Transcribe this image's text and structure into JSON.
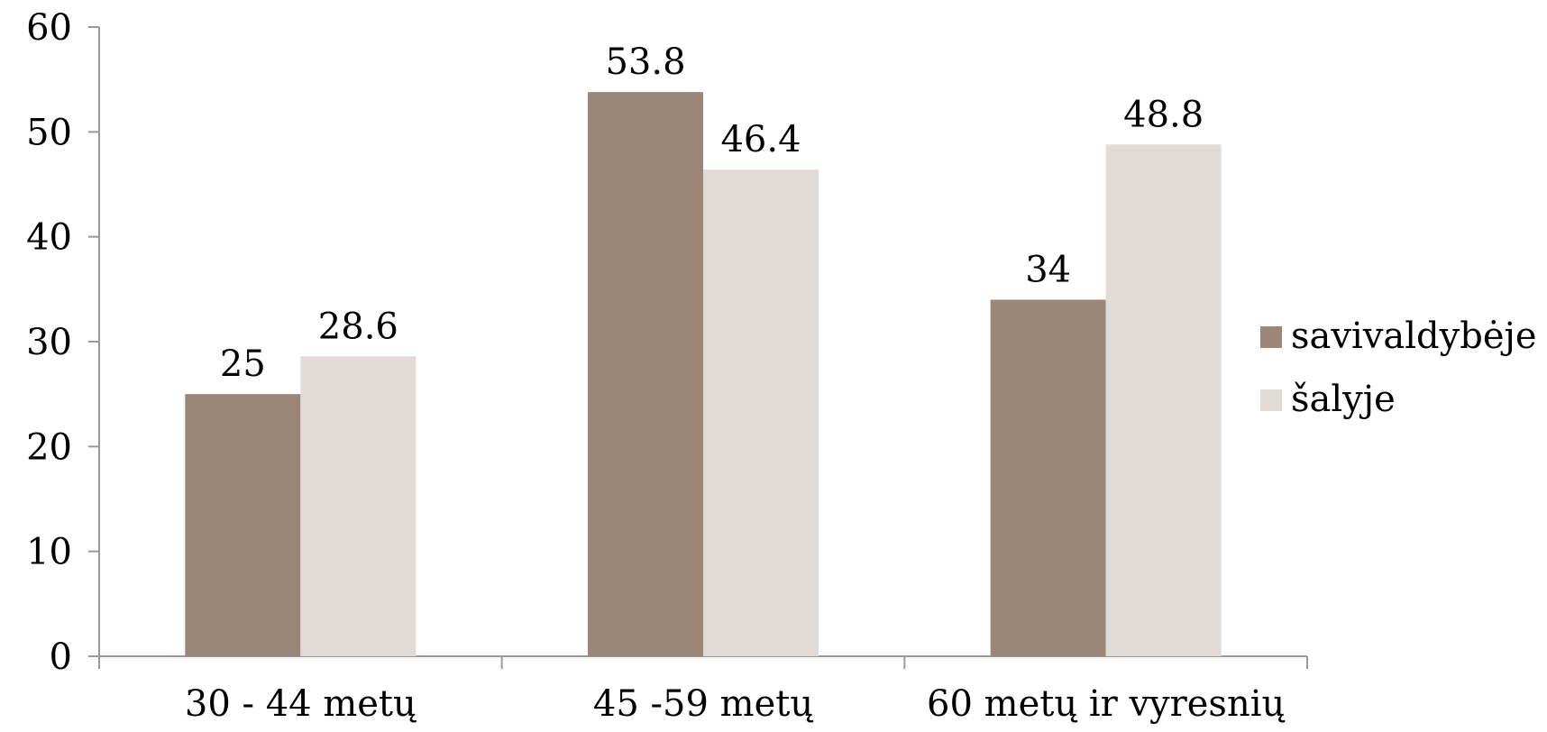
{
  "chart_data": {
    "type": "bar",
    "categories": [
      "30 - 44 metų",
      "45 -59 metų",
      "60 metų  ir vyresnių"
    ],
    "series": [
      {
        "name": "savivaldybėje",
        "values": [
          25,
          53.8,
          34
        ],
        "color": "#9b8677"
      },
      {
        "name": "šalyje",
        "values": [
          28.6,
          46.4,
          48.8
        ],
        "color": "#e0dbd7"
      }
    ],
    "ylim": [
      0,
      60
    ],
    "yticks": [
      "0",
      "10",
      "20",
      "30",
      "40",
      "50",
      "60"
    ],
    "data_labels": [
      [
        "25",
        "53.8",
        "34"
      ],
      [
        "28.6",
        "46.4",
        "48.8"
      ]
    ],
    "legend_position": "right",
    "grid": false,
    "title": "",
    "xlabel": "",
    "ylabel": ""
  }
}
